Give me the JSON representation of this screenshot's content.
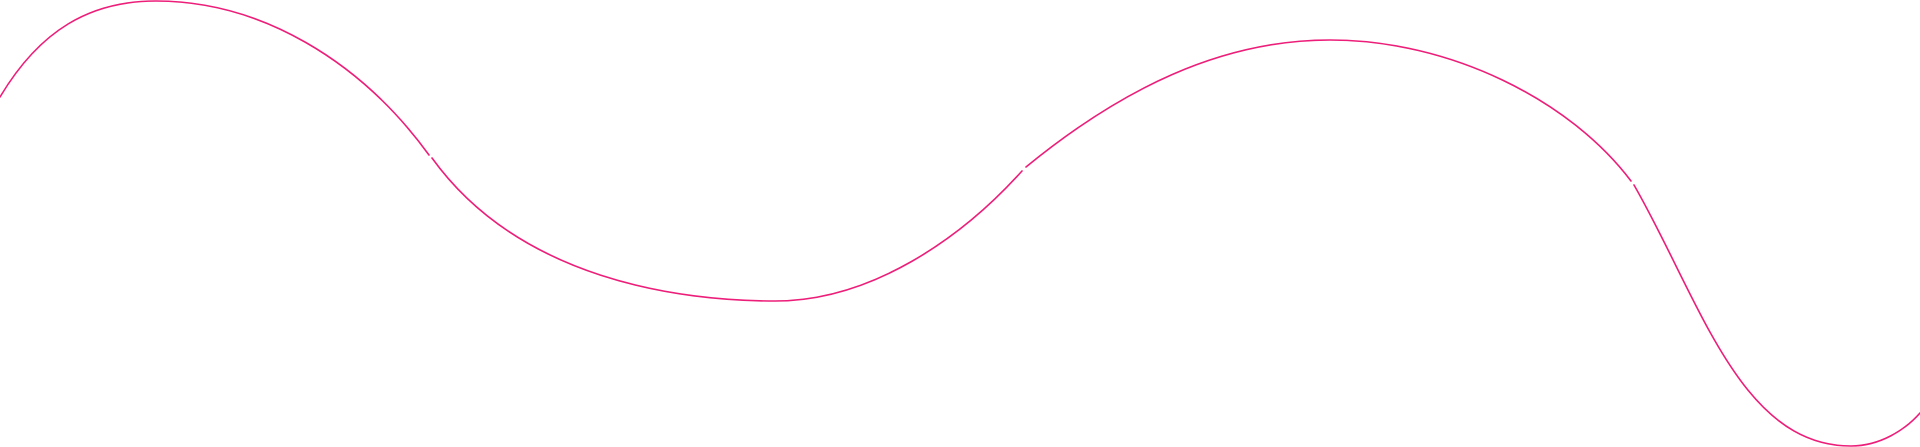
{
  "background_color": "#ffffff",
  "decoration": {
    "type": "wavy-line",
    "stroke_color": "#ec1e79"
  }
}
